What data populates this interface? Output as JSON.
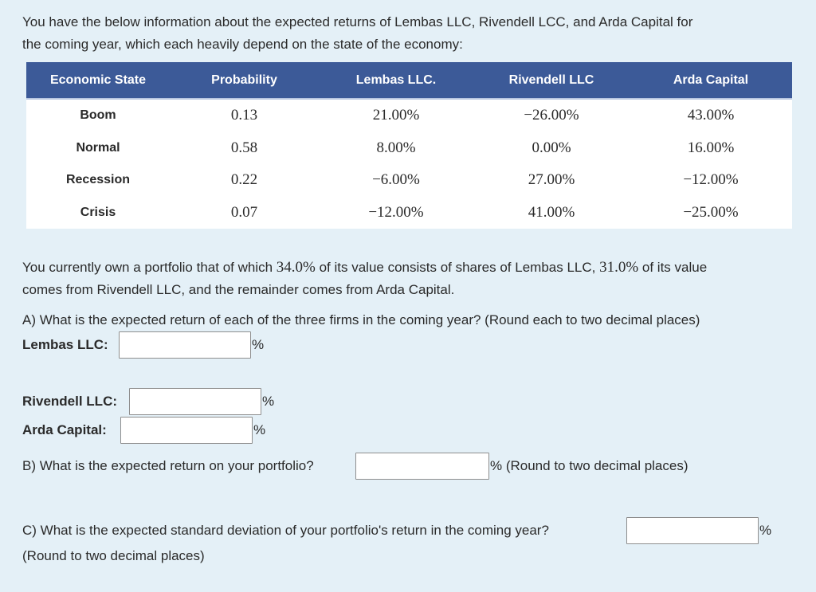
{
  "intro": {
    "line1": "You have the below information about the expected returns of Lembas LLC, Rivendell LCC, and Arda Capital for",
    "line2": "the coming year, which each heavily depend on the state of the economy:"
  },
  "table": {
    "headers": [
      "Economic State",
      "Probability",
      "Lembas LLC.",
      "Rivendell LLC",
      "Arda Capital"
    ],
    "rows": [
      {
        "state": "Boom",
        "probability": "0.13",
        "lembas": "21.00%",
        "rivendell": "−26.00%",
        "arda": "43.00%"
      },
      {
        "state": "Normal",
        "probability": "0.58",
        "lembas": "8.00%",
        "rivendell": "0.00%",
        "arda": "16.00%"
      },
      {
        "state": "Recession",
        "probability": "0.22",
        "lembas": "−6.00%",
        "rivendell": "27.00%",
        "arda": "−12.00%"
      },
      {
        "state": "Crisis",
        "probability": "0.07",
        "lembas": "−12.00%",
        "rivendell": "41.00%",
        "arda": "−25.00%"
      }
    ]
  },
  "portfolio": {
    "l1a": "You currently own a portfolio that of which ",
    "w1": "34.0%",
    "l1b": " of its value consists of shares of Lembas LLC, ",
    "w2": "31.0%",
    "l1c": " of its value",
    "line2": "comes from Rivendell LLC, and the remainder comes from Arda Capital."
  },
  "qa": {
    "question": "A) What is the expected return of each of the three firms in the coming year? (Round each to two decimal places)",
    "lembas_label": "Lembas LLC:",
    "rivendell_label": "Rivendell LLC:",
    "arda_label": "Arda Capital:",
    "lembas_value": "",
    "rivendell_value": "",
    "arda_value": ""
  },
  "qb": {
    "question": "B) What is the expected return on your portfolio?",
    "suffix": "% (Round to two decimal places)",
    "value": ""
  },
  "qc": {
    "question": "C) What is the expected standard deviation of your portfolio's return in the coming year?",
    "line2": "(Round to two decimal places)",
    "value": ""
  },
  "percent_sign": "%"
}
